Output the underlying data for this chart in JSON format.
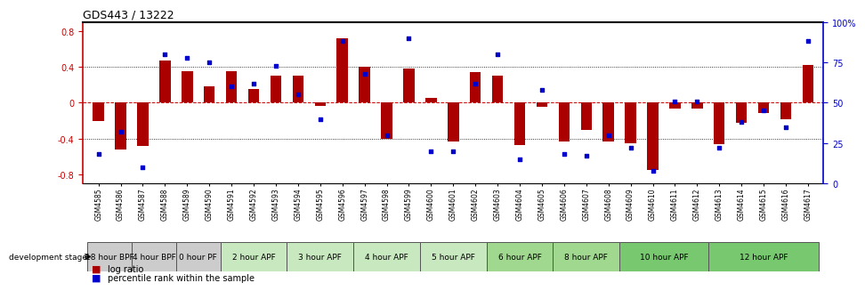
{
  "title": "GDS443 / 13222",
  "samples": [
    "GSM4585",
    "GSM4586",
    "GSM4587",
    "GSM4588",
    "GSM4589",
    "GSM4590",
    "GSM4591",
    "GSM4592",
    "GSM4593",
    "GSM4594",
    "GSM4595",
    "GSM4596",
    "GSM4597",
    "GSM4598",
    "GSM4599",
    "GSM4600",
    "GSM4601",
    "GSM4602",
    "GSM4603",
    "GSM4604",
    "GSM4605",
    "GSM4606",
    "GSM4607",
    "GSM4608",
    "GSM4609",
    "GSM4610",
    "GSM4611",
    "GSM4612",
    "GSM4613",
    "GSM4614",
    "GSM4615",
    "GSM4616",
    "GSM4617"
  ],
  "log_ratios": [
    -0.2,
    -0.52,
    -0.48,
    0.47,
    0.35,
    0.18,
    0.35,
    0.15,
    0.3,
    0.3,
    -0.04,
    0.72,
    0.4,
    -0.4,
    0.38,
    0.05,
    -0.43,
    0.34,
    0.3,
    -0.47,
    -0.05,
    -0.43,
    -0.3,
    -0.43,
    -0.45,
    -0.75,
    -0.07,
    -0.07,
    -0.46,
    -0.22,
    -0.12,
    -0.18,
    0.42
  ],
  "percentile_ranks": [
    18,
    32,
    10,
    80,
    78,
    75,
    60,
    62,
    73,
    55,
    40,
    88,
    68,
    30,
    90,
    20,
    20,
    62,
    80,
    15,
    58,
    18,
    17,
    30,
    22,
    8,
    51,
    51,
    22,
    38,
    45,
    35,
    88
  ],
  "stages": [
    {
      "label": "18 hour BPF",
      "start": 0,
      "end": 2,
      "color": "#cccccc"
    },
    {
      "label": "4 hour BPF",
      "start": 2,
      "end": 4,
      "color": "#cccccc"
    },
    {
      "label": "0 hour PF",
      "start": 4,
      "end": 6,
      "color": "#cccccc"
    },
    {
      "label": "2 hour APF",
      "start": 6,
      "end": 9,
      "color": "#c8e8c0"
    },
    {
      "label": "3 hour APF",
      "start": 9,
      "end": 12,
      "color": "#c8e8c0"
    },
    {
      "label": "4 hour APF",
      "start": 12,
      "end": 15,
      "color": "#c8e8c0"
    },
    {
      "label": "5 hour APF",
      "start": 15,
      "end": 18,
      "color": "#c8e8c0"
    },
    {
      "label": "6 hour APF",
      "start": 18,
      "end": 21,
      "color": "#a0d890"
    },
    {
      "label": "8 hour APF",
      "start": 21,
      "end": 24,
      "color": "#a0d890"
    },
    {
      "label": "10 hour APF",
      "start": 24,
      "end": 28,
      "color": "#78c870"
    },
    {
      "label": "12 hour APF",
      "start": 28,
      "end": 33,
      "color": "#78c870"
    }
  ],
  "bar_color": "#aa0000",
  "dot_color": "#0000cc",
  "ylim": [
    -0.9,
    0.9
  ],
  "y2lim": [
    0,
    100
  ],
  "background_color": "#ffffff",
  "title_fontsize": 9,
  "tick_fontsize": 7,
  "stage_fontsize": 6.5,
  "label_fontsize": 7
}
